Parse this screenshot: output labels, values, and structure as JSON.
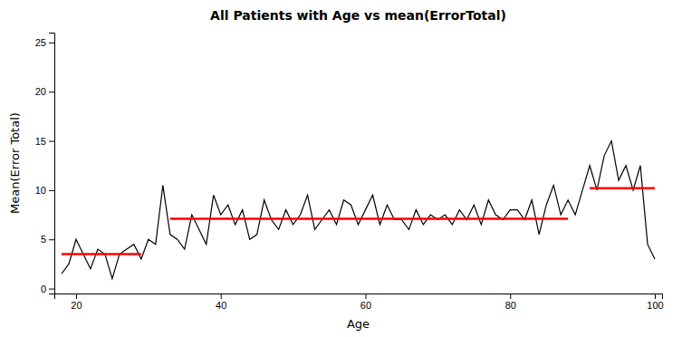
{
  "chart_data": {
    "type": "line",
    "title": "All Patients with Age vs mean(ErrorTotal)",
    "xlabel": "Age",
    "ylabel": "Mean(Error Total)",
    "x": [
      18,
      19,
      20,
      21,
      22,
      23,
      24,
      25,
      26,
      27,
      28,
      29,
      30,
      31,
      32,
      33,
      34,
      35,
      36,
      37,
      38,
      39,
      40,
      41,
      42,
      43,
      44,
      45,
      46,
      47,
      48,
      49,
      50,
      51,
      52,
      53,
      54,
      55,
      56,
      57,
      58,
      59,
      60,
      61,
      62,
      63,
      64,
      65,
      66,
      67,
      68,
      69,
      70,
      71,
      72,
      73,
      74,
      75,
      76,
      77,
      78,
      79,
      80,
      81,
      82,
      83,
      84,
      85,
      86,
      87,
      88,
      89,
      90,
      91,
      92,
      93,
      94,
      95,
      96,
      97,
      98,
      99,
      100
    ],
    "series": [
      {
        "color": "#000000",
        "values": [
          1.5,
          2.5,
          5.0,
          3.5,
          2.0,
          4.0,
          3.5,
          1.0,
          3.5,
          4.0,
          4.5,
          3.0,
          5.0,
          4.5,
          10.5,
          5.5,
          5.0,
          4.0,
          7.5,
          6.0,
          4.5,
          9.5,
          7.5,
          8.5,
          6.5,
          8.0,
          5.0,
          5.5,
          9.0,
          7.0,
          6.0,
          8.0,
          6.5,
          7.5,
          9.5,
          6.0,
          7.0,
          8.0,
          6.5,
          9.0,
          8.5,
          6.5,
          8.0,
          9.5,
          6.5,
          8.5,
          7.0,
          7.0,
          6.0,
          8.0,
          6.5,
          7.5,
          7.0,
          7.5,
          6.5,
          8.0,
          7.0,
          8.5,
          6.5,
          9.0,
          7.5,
          7.0,
          8.0,
          8.0,
          7.0,
          9.0,
          5.5,
          8.5,
          10.5,
          7.5,
          9.0,
          7.5,
          10.0,
          12.5,
          10.0,
          13.5,
          15.0,
          11.0,
          12.5,
          10.0,
          12.5,
          4.5,
          3.0
        ]
      }
    ],
    "segments": [
      {
        "x1": 18,
        "x2": 29,
        "y": 3.5,
        "color": "#FF0000"
      },
      {
        "x1": 33,
        "x2": 88,
        "y": 7.1,
        "color": "#FF0000"
      },
      {
        "x1": 91,
        "x2": 100,
        "y": 10.2,
        "color": "#FF0000"
      }
    ],
    "xlim": [
      17,
      101
    ],
    "ylim": [
      -0.5,
      26
    ],
    "xticks": [
      20,
      40,
      60,
      80,
      100
    ],
    "yticks": [
      0,
      5,
      10,
      15,
      20,
      25
    ],
    "grid": false
  }
}
